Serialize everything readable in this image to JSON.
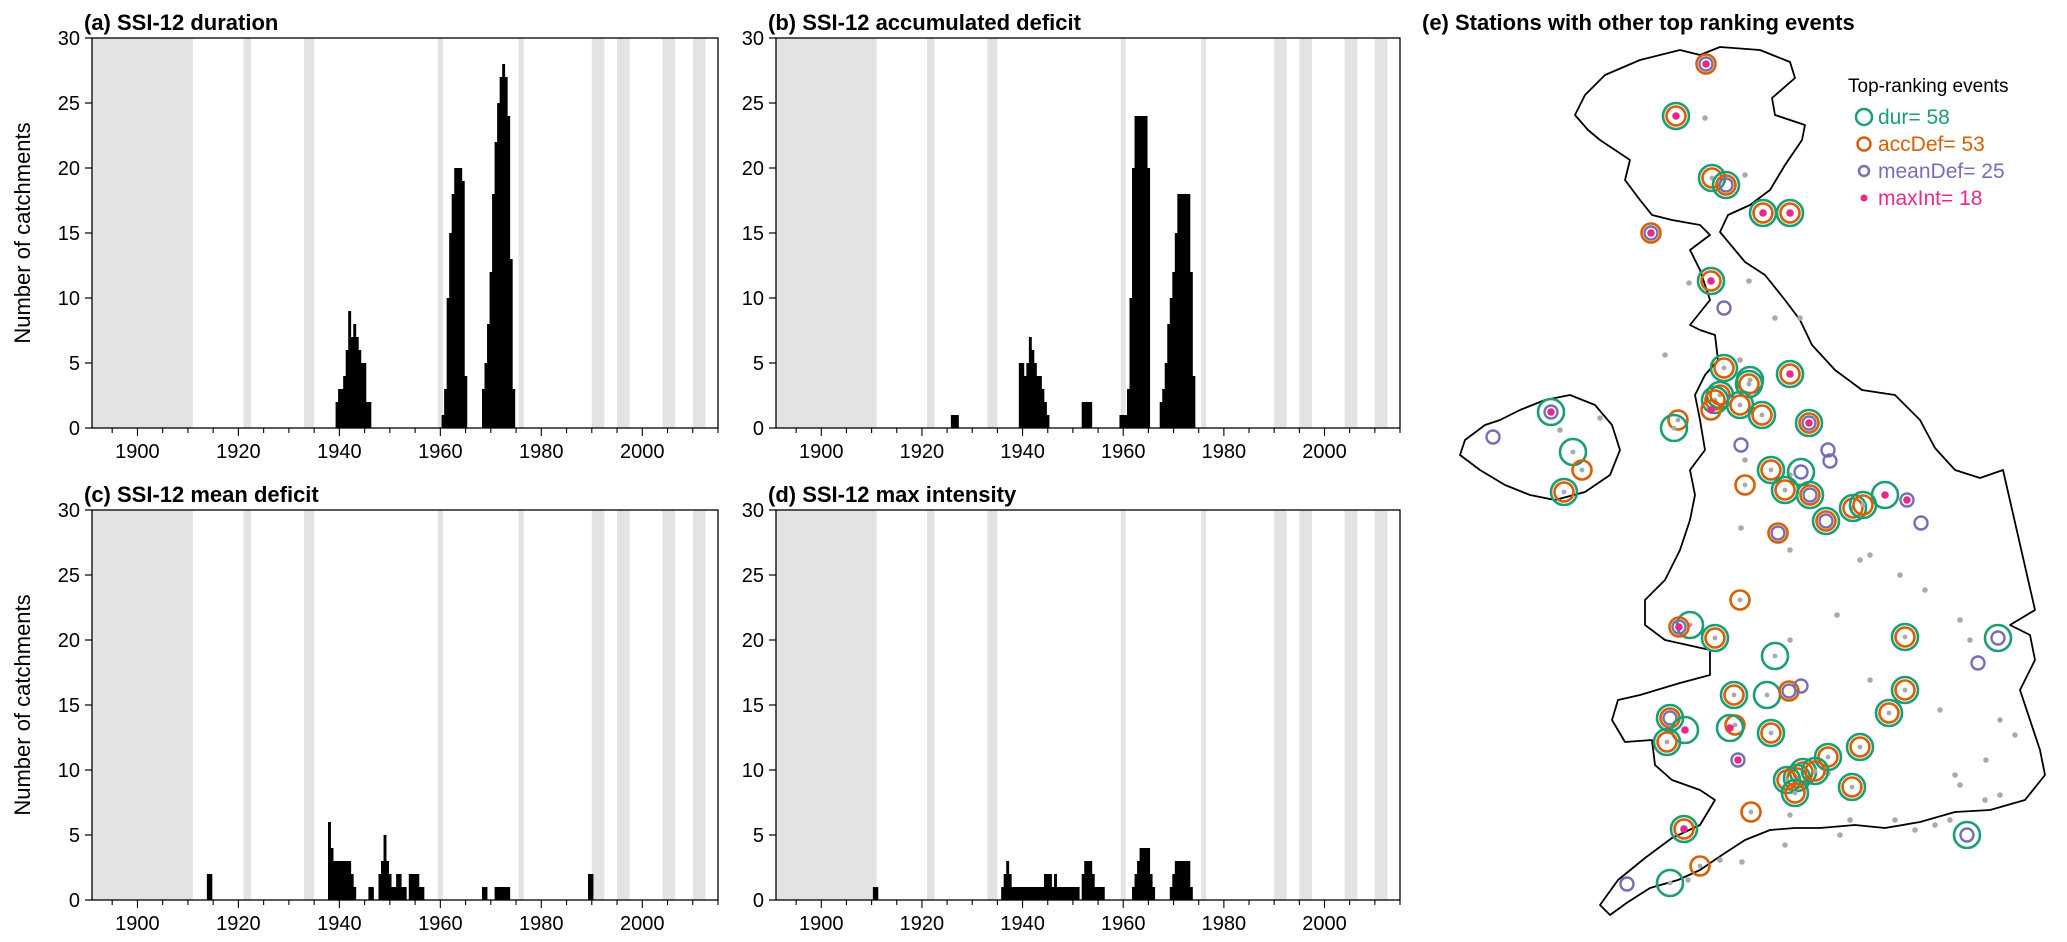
{
  "colors": {
    "dur": "#1b9e77",
    "accDef": "#d95f02",
    "meanDef": "#7570b3",
    "maxInt": "#e7298a",
    "other": "#aaaaaa",
    "shade": "#e3e3e3",
    "bar": "#000000"
  },
  "chart_data": [
    {
      "id": "a",
      "type": "bar",
      "title": "(a) SSI-12 duration",
      "ylabel": "Number of catchments",
      "xlim": [
        1891,
        2015
      ],
      "ylim": [
        0,
        30
      ],
      "xticks": [
        "1900",
        "1920",
        "1940",
        "1960",
        "1980",
        "2000"
      ],
      "yticks": [
        "0",
        "5",
        "10",
        "15",
        "20",
        "25",
        "30"
      ],
      "shaded_periods": [
        [
          1891,
          1911
        ],
        [
          1921,
          1922.5
        ],
        [
          1933,
          1935
        ],
        [
          1959.5,
          1960.5
        ],
        [
          1975.5,
          1976.5
        ],
        [
          1990,
          1992.5
        ],
        [
          1995,
          1997.5
        ],
        [
          2004,
          2006.5
        ],
        [
          2010,
          2012.5
        ]
      ],
      "x": [
        1939.5,
        1940,
        1940.5,
        1941,
        1941.5,
        1942,
        1942.5,
        1943,
        1943.5,
        1944,
        1944.5,
        1945,
        1945.5,
        1946,
        1946.5,
        1947,
        1960.5,
        1961,
        1961.5,
        1962,
        1962.5,
        1963,
        1963.5,
        1964,
        1964.5,
        1965,
        1965.5,
        1968.5,
        1969,
        1969.5,
        1970,
        1970.5,
        1971,
        1971.5,
        1972,
        1972.5,
        1973,
        1973.5,
        1974,
        1974.5,
        1975
      ],
      "values": [
        2,
        3,
        3,
        4,
        6,
        9,
        7,
        8,
        7,
        6,
        5,
        5,
        2,
        2,
        0,
        0,
        1,
        3,
        10,
        15,
        18,
        20,
        20,
        20,
        19,
        4,
        0,
        3,
        5,
        8,
        12,
        18,
        22,
        25,
        27,
        28,
        27,
        24,
        13,
        3,
        0
      ]
    },
    {
      "id": "b",
      "type": "bar",
      "title": "(b) SSI-12 accumulated deficit",
      "ylabel": "",
      "xlim": [
        1891,
        2015
      ],
      "ylim": [
        0,
        30
      ],
      "xticks": [
        "1900",
        "1920",
        "1940",
        "1960",
        "1980",
        "2000"
      ],
      "yticks": [
        "0",
        "5",
        "10",
        "15",
        "20",
        "25",
        "30"
      ],
      "shaded_periods": [
        [
          1891,
          1911
        ],
        [
          1921,
          1922.5
        ],
        [
          1933,
          1935
        ],
        [
          1959.5,
          1960.5
        ],
        [
          1975.5,
          1976.5
        ],
        [
          1990,
          1992.5
        ],
        [
          1995,
          1997.5
        ],
        [
          2004,
          2006.5
        ],
        [
          2010,
          2012.5
        ]
      ],
      "x": [
        1926,
        1926.5,
        1927,
        1939.5,
        1940,
        1940.5,
        1941,
        1941.5,
        1942,
        1942.5,
        1943,
        1943.5,
        1944,
        1944.5,
        1945,
        1945.5,
        1946,
        1952,
        1952.5,
        1953,
        1953.5,
        1954,
        1959.5,
        1960,
        1960.5,
        1961,
        1961.5,
        1962,
        1962.5,
        1963,
        1963.5,
        1964,
        1964.5,
        1965,
        1965.5,
        1967.5,
        1968,
        1968.5,
        1969,
        1969.5,
        1970,
        1970.5,
        1971,
        1971.5,
        1972,
        1972.5,
        1973,
        1973.5,
        1974,
        1974.5
      ],
      "values": [
        1,
        1,
        1,
        5,
        5,
        4,
        5,
        7,
        6,
        5,
        4,
        4,
        3,
        2,
        1,
        0,
        0,
        2,
        2,
        2,
        2,
        0,
        1,
        1,
        1,
        3,
        10,
        20,
        24,
        24,
        24,
        24,
        24,
        20,
        0,
        2,
        3,
        5,
        8,
        10,
        12,
        15,
        18,
        18,
        18,
        18,
        18,
        12,
        4,
        0
      ]
    },
    {
      "id": "c",
      "type": "bar",
      "title": "(c) SSI-12 mean deficit",
      "ylabel": "Number of catchments",
      "xlim": [
        1891,
        2015
      ],
      "ylim": [
        0,
        30
      ],
      "xticks": [
        "1900",
        "1920",
        "1940",
        "1960",
        "1980",
        "2000"
      ],
      "yticks": [
        "0",
        "5",
        "10",
        "15",
        "20",
        "25",
        "30"
      ],
      "shaded_periods": [
        [
          1891,
          1911
        ],
        [
          1921,
          1922.5
        ],
        [
          1933,
          1935
        ],
        [
          1959.5,
          1960.5
        ],
        [
          1975.5,
          1976.5
        ],
        [
          1990,
          1992.5
        ],
        [
          1995,
          1997.5
        ],
        [
          2004,
          2006.5
        ],
        [
          2010,
          2012.5
        ]
      ],
      "x": [
        1914,
        1914.5,
        1938,
        1938.5,
        1939,
        1939.5,
        1940,
        1940.5,
        1941,
        1941.5,
        1942,
        1942.5,
        1943,
        1946,
        1946.5,
        1948,
        1948.5,
        1949,
        1949.5,
        1950,
        1950.5,
        1951,
        1951.5,
        1952,
        1952.5,
        1953,
        1954,
        1954.5,
        1955,
        1955.5,
        1956,
        1956.5,
        1968.5,
        1969,
        1971,
        1971.5,
        1972,
        1972.5,
        1973,
        1973.5,
        1989.5,
        1990
      ],
      "values": [
        2,
        2,
        6,
        4,
        3,
        3,
        3,
        3,
        3,
        3,
        3,
        2,
        1,
        1,
        1,
        2,
        3,
        5,
        3,
        2,
        1,
        1,
        2,
        2,
        1,
        1,
        2,
        2,
        2,
        2,
        1,
        1,
        1,
        1,
        1,
        1,
        1,
        1,
        1,
        1,
        2,
        2
      ]
    },
    {
      "id": "d",
      "type": "bar",
      "title": "(d) SSI-12 max intensity",
      "ylabel": "",
      "xlim": [
        1891,
        2015
      ],
      "ylim": [
        0,
        30
      ],
      "xticks": [
        "1900",
        "1920",
        "1940",
        "1960",
        "1980",
        "2000"
      ],
      "yticks": [
        "0",
        "5",
        "10",
        "15",
        "20",
        "25",
        "30"
      ],
      "shaded_periods": [
        [
          1891,
          1911
        ],
        [
          1921,
          1922.5
        ],
        [
          1933,
          1935
        ],
        [
          1959.5,
          1960.5
        ],
        [
          1975.5,
          1976.5
        ],
        [
          1990,
          1992.5
        ],
        [
          1995,
          1997.5
        ],
        [
          2004,
          2006.5
        ],
        [
          2010,
          2012.5
        ]
      ],
      "x": [
        1910.5,
        1911,
        1911.5,
        1936,
        1936.5,
        1937,
        1937.5,
        1938,
        1938.5,
        1939,
        1939.5,
        1940,
        1940.5,
        1941,
        1941.5,
        1942,
        1942.5,
        1943,
        1943.5,
        1944,
        1944.5,
        1945,
        1945.5,
        1946,
        1946.5,
        1947,
        1947.5,
        1948,
        1948.5,
        1949,
        1949.5,
        1950,
        1950.5,
        1951,
        1952,
        1952.5,
        1953,
        1953.5,
        1954,
        1954.5,
        1955,
        1955.5,
        1956,
        1962,
        1962.5,
        1963,
        1963.5,
        1964,
        1964.5,
        1965,
        1965.5,
        1966,
        1966.5,
        1969.5,
        1970,
        1970.5,
        1971,
        1971.5,
        1972,
        1972.5,
        1973,
        1973.5,
        1974
      ],
      "values": [
        1,
        1,
        0,
        1,
        2,
        3,
        2,
        1,
        1,
        1,
        1,
        1,
        1,
        1,
        1,
        1,
        1,
        1,
        1,
        1,
        2,
        2,
        2,
        1,
        2,
        1,
        1,
        1,
        1,
        1,
        1,
        1,
        1,
        1,
        2,
        3,
        3,
        3,
        2,
        1,
        1,
        1,
        1,
        1,
        2,
        3,
        4,
        4,
        4,
        4,
        2,
        1,
        0,
        1,
        2,
        3,
        3,
        3,
        3,
        3,
        3,
        1,
        0
      ]
    },
    {
      "id": "e",
      "type": "scatter",
      "title": "(e) Stations with other top ranking events",
      "legend_title": "Top-ranking events",
      "legend_items": [
        "dur= 58",
        "accDef= 53",
        "meanDef= 25",
        "maxInt= 18"
      ],
      "legend_position": "top-right"
    }
  ]
}
